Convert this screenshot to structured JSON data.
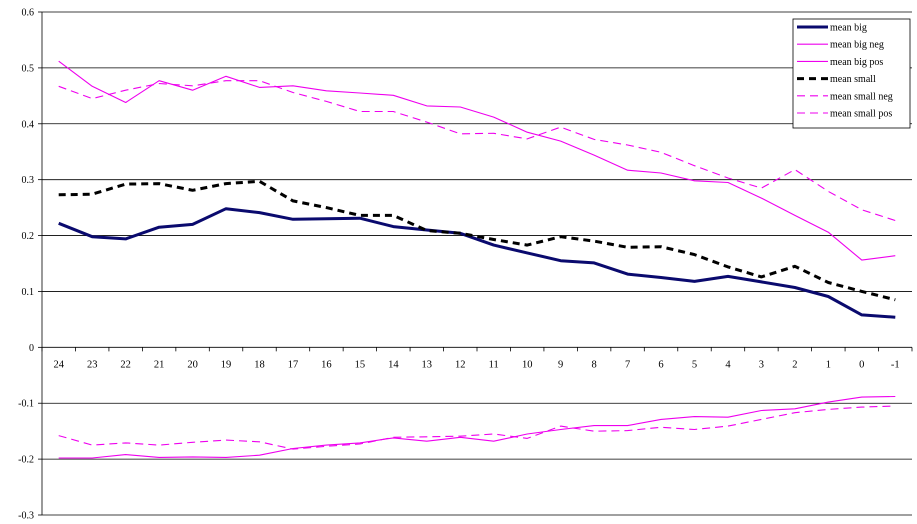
{
  "chart_data": {
    "type": "line",
    "title": "",
    "xlabel": "",
    "ylabel": "",
    "ylim": [
      -0.3,
      0.6
    ],
    "yticks": [
      "0.6",
      "0.5",
      "0.4",
      "0.3",
      "0.2",
      "0.1",
      "0",
      "-0.1",
      "-0.2",
      "-0.3"
    ],
    "ytick_values": [
      0.6,
      0.5,
      0.4,
      0.3,
      0.2,
      0.1,
      0,
      -0.1,
      -0.2,
      -0.3
    ],
    "categories": [
      "24",
      "23",
      "22",
      "21",
      "20",
      "19",
      "18",
      "17",
      "16",
      "15",
      "14",
      "13",
      "12",
      "11",
      "10",
      "9",
      "8",
      "7",
      "6",
      "5",
      "4",
      "3",
      "2",
      "1",
      "0",
      "-1"
    ],
    "grid": true,
    "legend_position": "top-right",
    "series": [
      {
        "name": "mean big",
        "color": "#0a0a6e",
        "style": "solid-thick",
        "values": [
          0.222,
          0.198,
          0.194,
          0.215,
          0.22,
          0.248,
          0.241,
          0.229,
          0.23,
          0.231,
          0.216,
          0.21,
          0.204,
          0.183,
          0.169,
          0.155,
          0.151,
          0.131,
          0.125,
          0.118,
          0.127,
          0.117,
          0.107,
          0.091,
          0.058,
          0.054
        ]
      },
      {
        "name": "mean big neg",
        "color": "#ee00ee",
        "style": "solid-thin",
        "values": [
          -0.198,
          -0.198,
          -0.192,
          -0.197,
          -0.196,
          -0.197,
          -0.193,
          -0.181,
          -0.175,
          -0.171,
          -0.162,
          -0.168,
          -0.161,
          -0.168,
          -0.155,
          -0.147,
          -0.14,
          -0.14,
          -0.129,
          -0.124,
          -0.125,
          -0.113,
          -0.11,
          -0.098,
          -0.089,
          -0.088
        ]
      },
      {
        "name": "mean big pos",
        "color": "#ee00ee",
        "style": "solid-thin",
        "values": [
          0.512,
          0.467,
          0.438,
          0.477,
          0.46,
          0.485,
          0.465,
          0.468,
          0.459,
          0.455,
          0.451,
          0.432,
          0.43,
          0.412,
          0.385,
          0.369,
          0.344,
          0.317,
          0.312,
          0.298,
          0.295,
          0.267,
          0.236,
          0.206,
          0.156,
          0.164
        ]
      },
      {
        "name": "mean small",
        "color": "#000000",
        "style": "dashed-thick",
        "values": [
          0.273,
          0.274,
          0.292,
          0.293,
          0.281,
          0.293,
          0.297,
          0.262,
          0.25,
          0.236,
          0.236,
          0.209,
          0.204,
          0.193,
          0.183,
          0.198,
          0.19,
          0.179,
          0.18,
          0.166,
          0.144,
          0.126,
          0.145,
          0.116,
          0.1,
          0.085
        ]
      },
      {
        "name": "mean small neg",
        "color": "#ee00ee",
        "style": "dashed-thin",
        "values": [
          -0.158,
          -0.175,
          -0.171,
          -0.175,
          -0.17,
          -0.166,
          -0.169,
          -0.182,
          -0.177,
          -0.173,
          -0.161,
          -0.16,
          -0.159,
          -0.155,
          -0.163,
          -0.141,
          -0.15,
          -0.149,
          -0.143,
          -0.147,
          -0.141,
          -0.129,
          -0.117,
          -0.111,
          -0.107,
          -0.105
        ]
      },
      {
        "name": "mean small pos",
        "color": "#ee00ee",
        "style": "dashed-thin",
        "values": [
          0.467,
          0.445,
          0.46,
          0.472,
          0.468,
          0.477,
          0.477,
          0.456,
          0.44,
          0.422,
          0.422,
          0.403,
          0.382,
          0.383,
          0.373,
          0.394,
          0.372,
          0.362,
          0.349,
          0.325,
          0.303,
          0.285,
          0.318,
          0.279,
          0.246,
          0.227
        ]
      }
    ]
  }
}
